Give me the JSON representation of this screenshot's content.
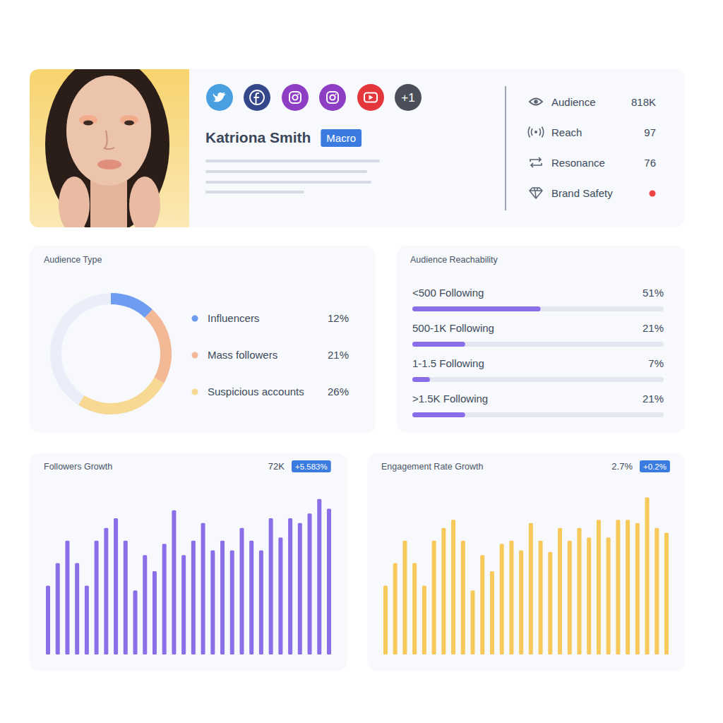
{
  "profile": {
    "name": "Katriona Smith",
    "tier": "Macro",
    "more_networks": "+1",
    "stats": [
      {
        "label": "Audience",
        "value": "818K"
      },
      {
        "label": "Reach",
        "value": 97
      },
      {
        "label": "Resonance",
        "value": 76
      },
      {
        "label": "Brand Safety"
      }
    ]
  },
  "chart_data": [
    {
      "type": "pie",
      "title": "Audience Type",
      "categories": [
        "Influencers",
        "Mass followers",
        "Suspicious accounts"
      ],
      "values": [
        12,
        21,
        26
      ],
      "value_labels": [
        "12%",
        "21%",
        "26%"
      ],
      "colors": [
        "#6d9cf0",
        "#f3b896",
        "#f7d993"
      ],
      "legend": "right"
    },
    {
      "type": "bar",
      "orientation": "horizontal",
      "title": "Audience Reachability",
      "categories": [
        "<500 Following",
        "500-1K Following",
        "1-1.5 Following",
        ">1.5K Following"
      ],
      "values": [
        51,
        21,
        7,
        21
      ],
      "value_labels": [
        "51%",
        "21%",
        "7%",
        "21%"
      ],
      "color": "#8a6de9",
      "xlim": [
        0,
        100
      ],
      "tick_labels": false,
      "data_labels": true
    },
    {
      "type": "bar",
      "title": "Followers Growth",
      "subtitle": "72K",
      "annotations": [
        "+5.583%"
      ],
      "categories": [
        null,
        null,
        null,
        null,
        null,
        null,
        null,
        null,
        null,
        null,
        null,
        null,
        null,
        null,
        null,
        null,
        null,
        null,
        null,
        null,
        null,
        null,
        null,
        null,
        null,
        null,
        null,
        null,
        null,
        null
      ],
      "values": [
        43,
        57,
        71,
        57,
        43,
        71,
        79,
        85,
        71,
        40,
        62,
        52,
        69,
        90,
        62,
        71,
        82,
        65,
        71,
        65,
        79,
        71,
        65,
        85,
        73,
        85,
        82,
        88,
        97,
        91
      ],
      "color": "#8b6fe8",
      "ylim": [
        0,
        100
      ],
      "tick_labels": false
    },
    {
      "type": "bar",
      "title": "Engagement Rate Growth",
      "subtitle": "2.7%",
      "annotations": [
        "+0.2%"
      ],
      "categories": [
        null,
        null,
        null,
        null,
        null,
        null,
        null,
        null,
        null,
        null,
        null,
        null,
        null,
        null,
        null,
        null,
        null,
        null,
        null,
        null,
        null,
        null,
        null,
        null,
        null,
        null,
        null,
        null,
        null,
        null
      ],
      "values": [
        43,
        57,
        71,
        57,
        43,
        71,
        79,
        84,
        71,
        40,
        62,
        52,
        69,
        71,
        65,
        82,
        71,
        64,
        79,
        71,
        79,
        73,
        84,
        73,
        84,
        84,
        82,
        98,
        79,
        76
      ],
      "color": "#f7c85a",
      "ylim": [
        0,
        100
      ],
      "tick_labels": false
    }
  ]
}
